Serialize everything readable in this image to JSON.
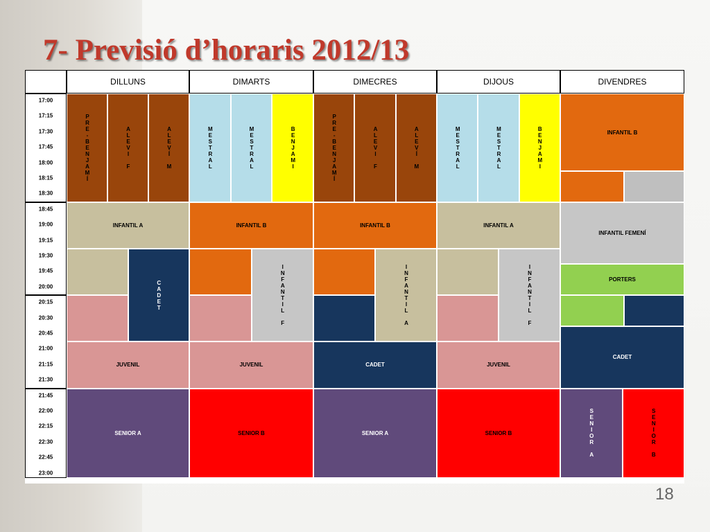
{
  "slide": {
    "title": "7- Previsió d’horaris 2012/13",
    "page_number": "18"
  },
  "days": [
    "DILLUNS",
    "DIMARTS",
    "DIMECRES",
    "DIJOUS",
    "DIVENDRES"
  ],
  "times": [
    "17:00",
    "17:15",
    "17:30",
    "17:45",
    "18:00",
    "18:15",
    "18:30",
    "18:45",
    "19:00",
    "19:15",
    "19:30",
    "19:45",
    "20:00",
    "20:15",
    "20:30",
    "20:45",
    "21:00",
    "21:15",
    "21:30",
    "21:45",
    "22:00",
    "22:15",
    "22:30",
    "22:45",
    "23:00"
  ],
  "groups": {
    "pre_benjami": "PRE-BENJAMÍ",
    "alevi_f": "ALEVI F",
    "alevi_m": "ALEVÍ M",
    "mestral": "MESTRAL",
    "benjami": "BENJAMI",
    "infantil_a": "INFANTIL A",
    "infantil_b": "INFANTIL B",
    "infantil_f": "INFANTIL F",
    "infantil_femeni": "INFANTIL FEMENÍ",
    "cadet": "CADET",
    "juvenil": "JUVENIL",
    "porters": "PORTERS",
    "senior_a": "SENIOR A",
    "senior_b": "SENIOR B"
  },
  "colors": {
    "title": "#c0392b",
    "alevi": "#99450b",
    "mestral": "#b5dde9",
    "benjami": "#ffff00",
    "infantil_b": "#e2690f",
    "infantil_a": "#c7bf9e",
    "cadet": "#17365d",
    "juvenil": "#d99695",
    "senior_a": "#604a7b",
    "senior_b": "#ff0000",
    "porters": "#92d050",
    "infantil_f": "#c6c6c6"
  }
}
